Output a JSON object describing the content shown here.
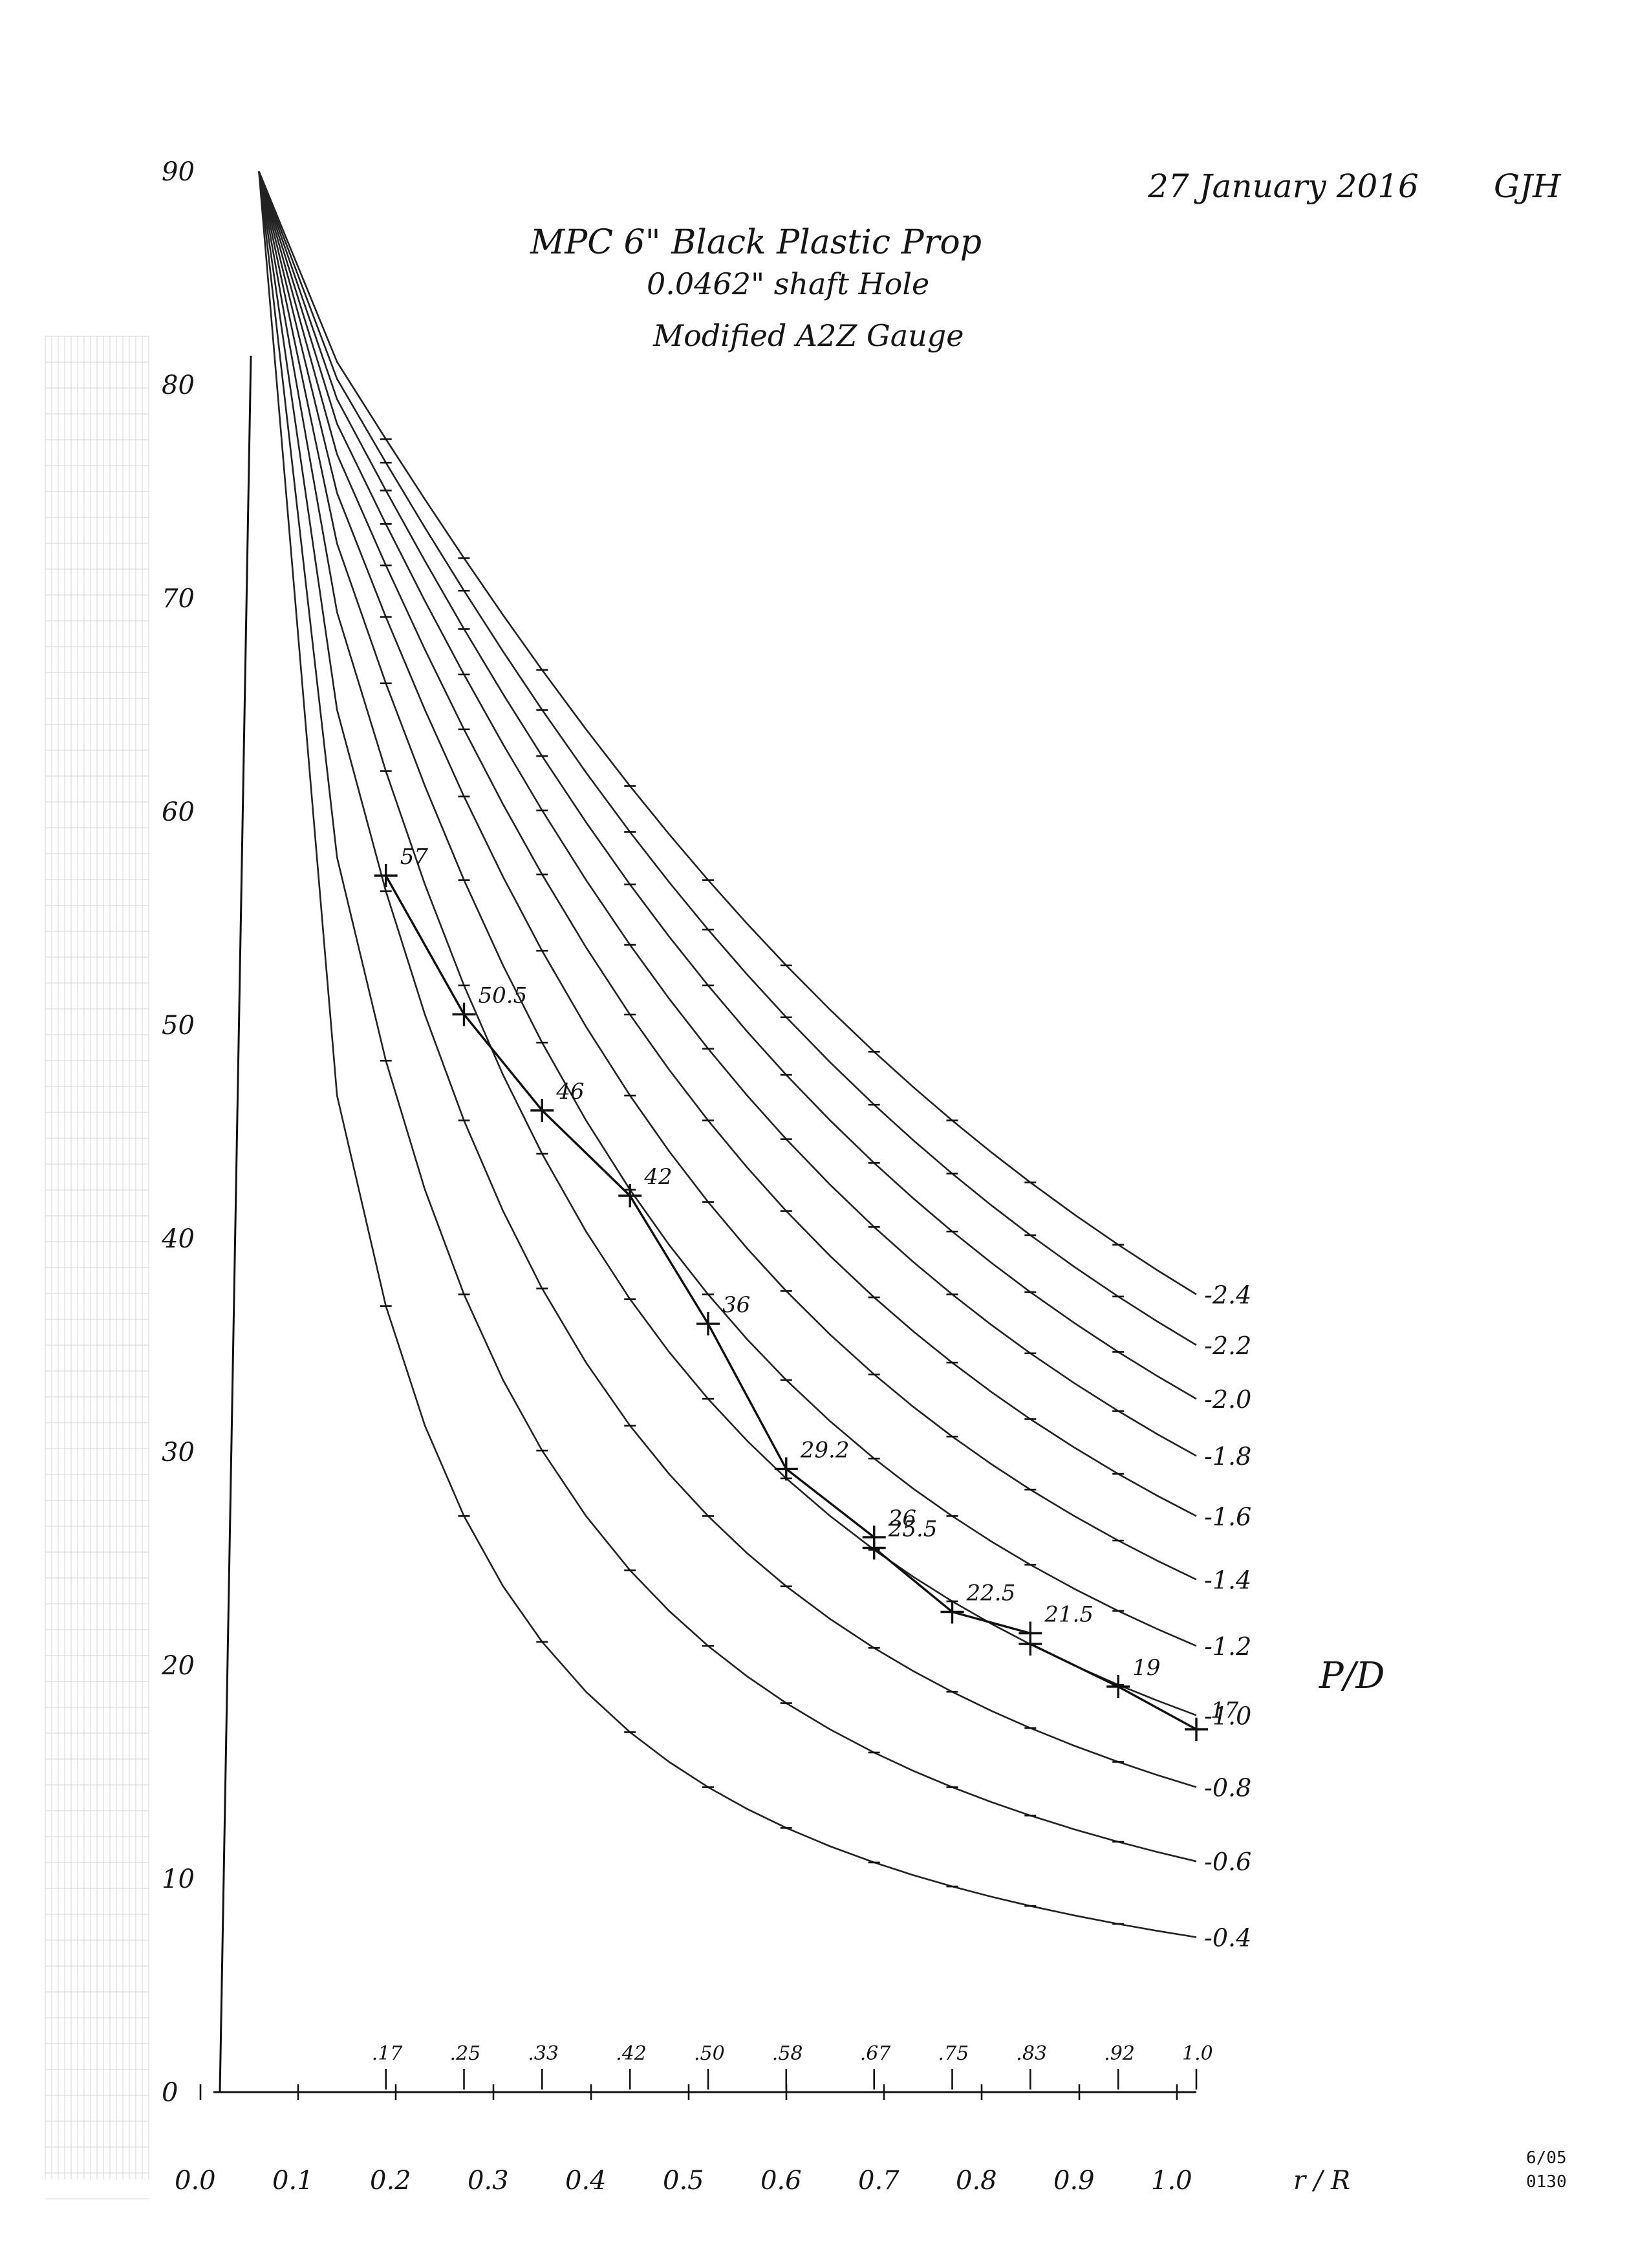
{
  "header": {
    "date": "27 January 2016",
    "initials": "GJH",
    "title": "MPC 6\" Black Plastic Prop",
    "subtitle1": "0.0462\" shaft Hole",
    "subtitle2": "Modified A2Z Gauge"
  },
  "stamp": [
    "6/05",
    "0130"
  ],
  "chart_data": {
    "type": "line",
    "xlabel": "r / R",
    "ylabel": "",
    "legend_title": "P/D",
    "xlim": [
      0,
      1.0
    ],
    "ylim": [
      0,
      90
    ],
    "x_ticks": [
      "0.0",
      "0.1",
      "0.2",
      "0.3",
      "0.4",
      "0.5",
      "0.6",
      "0.7",
      "0.8",
      "0.9",
      "1.0"
    ],
    "y_ticks": [
      "0",
      "10",
      "20",
      "30",
      "40",
      "50",
      "60",
      "70",
      "80",
      "90"
    ],
    "station_labels": [
      {
        "label": ".17",
        "x": 0.17
      },
      {
        "label": ".25",
        "x": 0.25
      },
      {
        "label": ".33",
        "x": 0.33
      },
      {
        "label": ".42",
        "x": 0.42
      },
      {
        "label": ".50",
        "x": 0.5
      },
      {
        "label": ".58",
        "x": 0.58
      },
      {
        "label": ".67",
        "x": 0.67
      },
      {
        "label": ".75",
        "x": 0.75
      },
      {
        "label": ".83",
        "x": 0.83
      },
      {
        "label": ".92",
        "x": 0.92
      },
      {
        "label": "1.0",
        "x": 1.0
      }
    ],
    "curve_labels": [
      "2.4",
      "2.2",
      "2.0",
      "1.8",
      "1.6",
      "1.4",
      "1.2",
      "1.0",
      "0.8",
      "0.6",
      "0.4"
    ],
    "measured": {
      "x": [
        0.17,
        0.25,
        0.33,
        0.42,
        0.5,
        0.58,
        0.67,
        0.67,
        0.75,
        0.83,
        0.83,
        0.92,
        1.0
      ],
      "y": [
        57,
        50.5,
        46,
        42,
        36,
        29.2,
        26,
        25.5,
        22.5,
        21.5,
        21,
        19,
        17
      ],
      "labels": [
        "57",
        "50.5",
        "46",
        "42",
        "36",
        "29.2",
        "26",
        "25.5",
        "22.5",
        "21.5",
        "",
        "19",
        "17"
      ]
    }
  }
}
